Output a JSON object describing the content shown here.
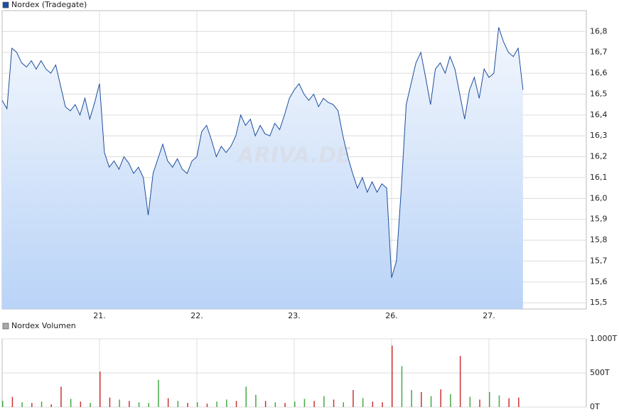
{
  "chart_data": [
    {
      "type": "line",
      "series": [
        {
          "name": "Nordex (Tradegate)",
          "color": "#1c4e9d",
          "values": [
            16.47,
            16.43,
            16.72,
            16.7,
            16.65,
            16.63,
            16.66,
            16.62,
            16.66,
            16.62,
            16.6,
            16.64,
            16.54,
            16.44,
            16.42,
            16.45,
            16.4,
            16.48,
            16.38,
            16.46,
            16.55,
            16.22,
            16.15,
            16.18,
            16.14,
            16.2,
            16.17,
            16.12,
            16.15,
            16.1,
            15.92,
            16.12,
            16.19,
            16.26,
            16.18,
            16.15,
            16.19,
            16.14,
            16.12,
            16.18,
            16.2,
            16.32,
            16.35,
            16.28,
            16.2,
            16.25,
            16.22,
            16.25,
            16.3,
            16.4,
            16.35,
            16.38,
            16.3,
            16.35,
            16.31,
            16.3,
            16.36,
            16.33,
            16.4,
            16.48,
            16.52,
            16.55,
            16.5,
            16.47,
            16.5,
            16.44,
            16.48,
            16.46,
            16.45,
            16.42,
            16.3,
            16.2,
            16.12,
            16.05,
            16.1,
            16.03,
            16.08,
            16.03,
            16.07,
            16.05,
            15.62,
            15.7,
            16.05,
            16.45,
            16.55,
            16.65,
            16.7,
            16.58,
            16.45,
            16.62,
            16.65,
            16.6,
            16.68,
            16.62,
            16.5,
            16.38,
            16.52,
            16.58,
            16.48,
            16.62,
            16.58,
            16.6,
            16.82,
            16.75,
            16.7,
            16.68,
            16.72,
            16.52
          ]
        }
      ],
      "x": [
        0,
        0.05,
        0.1,
        0.15,
        0.2,
        0.25,
        0.3,
        0.35,
        0.4,
        0.45,
        0.5,
        0.55,
        0.6,
        0.65,
        0.7,
        0.75,
        0.8,
        0.85,
        0.9,
        0.95,
        1,
        1.05,
        1.1,
        1.15,
        1.2,
        1.25,
        1.3,
        1.35,
        1.4,
        1.45,
        1.5,
        1.55,
        1.6,
        1.65,
        1.7,
        1.75,
        1.8,
        1.85,
        1.9,
        1.95,
        2,
        2.05,
        2.1,
        2.15,
        2.2,
        2.25,
        2.3,
        2.35,
        2.4,
        2.45,
        2.5,
        2.55,
        2.6,
        2.65,
        2.7,
        2.75,
        2.8,
        2.85,
        2.9,
        2.95,
        3,
        3.05,
        3.1,
        3.15,
        3.2,
        3.25,
        3.3,
        3.35,
        3.4,
        3.45,
        3.5,
        3.55,
        3.6,
        3.65,
        3.7,
        3.75,
        3.8,
        3.85,
        3.9,
        3.95,
        4,
        4.05,
        4.1,
        4.15,
        4.2,
        4.25,
        4.3,
        4.35,
        4.4,
        4.45,
        4.5,
        4.55,
        4.6,
        4.65,
        4.7,
        4.75,
        4.8,
        4.85,
        4.9,
        4.95,
        5,
        5.05,
        5.1,
        5.15,
        5.2,
        5.25,
        5.3,
        5.35
      ],
      "xlim": [
        0,
        6
      ],
      "xticks": [
        {
          "value": 1,
          "label": "21."
        },
        {
          "value": 2,
          "label": "22."
        },
        {
          "value": 3,
          "label": "23."
        },
        {
          "value": 4,
          "label": "26."
        },
        {
          "value": 5,
          "label": "27."
        }
      ],
      "ylim": [
        15.47,
        16.9
      ],
      "yticks": [
        {
          "value": 15.5,
          "label": "15,5"
        },
        {
          "value": 15.6,
          "label": "15,6"
        },
        {
          "value": 15.7,
          "label": "15,7"
        },
        {
          "value": 15.8,
          "label": "15,8"
        },
        {
          "value": 15.9,
          "label": "15,9"
        },
        {
          "value": 16.0,
          "label": "16,0"
        },
        {
          "value": 16.1,
          "label": "16,1"
        },
        {
          "value": 16.2,
          "label": "16,2"
        },
        {
          "value": 16.3,
          "label": "16,3"
        },
        {
          "value": 16.4,
          "label": "16,4"
        },
        {
          "value": 16.5,
          "label": "16,5"
        },
        {
          "value": 16.6,
          "label": "16,6"
        },
        {
          "value": 16.7,
          "label": "16,7"
        },
        {
          "value": 16.8,
          "label": "16,8"
        }
      ],
      "grid": true,
      "watermark": "ARIVA.DE"
    },
    {
      "type": "bar",
      "series": [
        {
          "name": "Nordex Volumen",
          "color": "#aaaaaa"
        }
      ],
      "x": [
        0,
        0.1,
        0.2,
        0.3,
        0.4,
        0.5,
        0.6,
        0.7,
        0.8,
        0.9,
        1,
        1.1,
        1.2,
        1.3,
        1.4,
        1.5,
        1.6,
        1.7,
        1.8,
        1.9,
        2,
        2.1,
        2.2,
        2.3,
        2.4,
        2.5,
        2.6,
        2.7,
        2.8,
        2.9,
        3,
        3.1,
        3.2,
        3.3,
        3.4,
        3.5,
        3.6,
        3.7,
        3.8,
        3.9,
        4,
        4.1,
        4.2,
        4.3,
        4.4,
        4.5,
        4.6,
        4.7,
        4.8,
        4.9,
        5,
        5.1,
        5.2,
        5.3
      ],
      "values": [
        90,
        150,
        70,
        60,
        80,
        40,
        300,
        120,
        80,
        60,
        520,
        140,
        110,
        90,
        70,
        60,
        400,
        130,
        90,
        60,
        70,
        50,
        80,
        110,
        90,
        300,
        180,
        90,
        70,
        60,
        80,
        120,
        90,
        160,
        110,
        70,
        250,
        130,
        80,
        70,
        900,
        600,
        250,
        220,
        160,
        260,
        190,
        750,
        150,
        110,
        220,
        170,
        130,
        140
      ],
      "colors": [
        "#44aa44",
        "#cc3333",
        "#44aa44",
        "#cc3333",
        "#44aa44",
        "#cc3333",
        "#cc3333",
        "#44aa44",
        "#cc3333",
        "#44aa44",
        "#cc3333",
        "#cc3333",
        "#44aa44",
        "#cc3333",
        "#44aa44",
        "#44aa44",
        "#44aa44",
        "#cc3333",
        "#44aa44",
        "#cc3333",
        "#44aa44",
        "#cc3333",
        "#44aa44",
        "#44aa44",
        "#cc3333",
        "#44aa44",
        "#44aa44",
        "#cc3333",
        "#44aa44",
        "#cc3333",
        "#44aa44",
        "#44aa44",
        "#cc3333",
        "#44aa44",
        "#cc3333",
        "#44aa44",
        "#cc3333",
        "#44aa44",
        "#cc3333",
        "#cc3333",
        "#cc3333",
        "#44aa44",
        "#44aa44",
        "#cc3333",
        "#44aa44",
        "#cc3333",
        "#44aa44",
        "#cc3333",
        "#44aa44",
        "#cc3333",
        "#44aa44",
        "#44aa44",
        "#cc3333",
        "#cc3333"
      ],
      "xlim": [
        0,
        6
      ],
      "ylim": [
        0,
        1000
      ],
      "yticks": [
        {
          "value": 0,
          "label": "0T"
        },
        {
          "value": 500,
          "label": "500T"
        },
        {
          "value": 1000,
          "label": "1.000T"
        }
      ],
      "grid": true
    }
  ]
}
